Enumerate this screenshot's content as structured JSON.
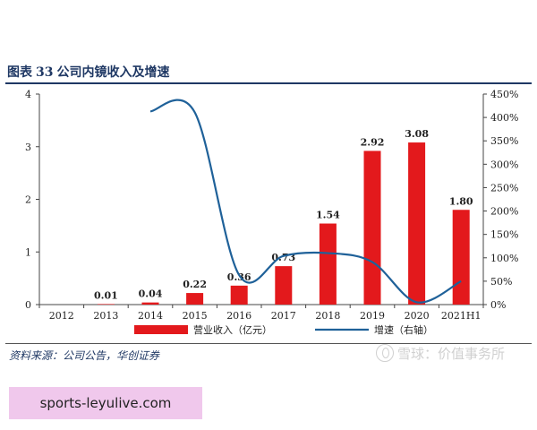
{
  "figure": {
    "label": "图表",
    "number": "33",
    "caption": "公司内镜收入及增速"
  },
  "source_text": "资料来源：公司公告，华创证券",
  "watermark_text": "雪球：价值事务所",
  "banner_text": "sports-leyulive.com",
  "chart_data": {
    "type": "bar",
    "title": "",
    "xlabel": "",
    "ylabel": "",
    "categories": [
      "2012",
      "2013",
      "2014",
      "2015",
      "2016",
      "2017",
      "2018",
      "2019",
      "2020",
      "2021H1"
    ],
    "series": [
      {
        "name": "营业收入（亿元）",
        "type": "bar",
        "axis": "left",
        "color": "#e3191c",
        "values": [
          0,
          0.01,
          0.04,
          0.22,
          0.36,
          0.73,
          1.54,
          2.92,
          3.08,
          1.8
        ],
        "data_labels": [
          "",
          "0.01",
          "0.04",
          "0.22",
          "0.36",
          "0.73",
          "1.54",
          "2.92",
          "3.08",
          "1.80"
        ]
      },
      {
        "name": "增速（右轴）",
        "type": "line",
        "axis": "right",
        "color": "#1f6199",
        "smooth": true,
        "values": [
          null,
          null,
          413,
          411,
          63,
          104,
          110,
          91,
          5,
          50
        ]
      }
    ],
    "ylim": [
      0,
      4
    ],
    "yticks": [
      "0",
      "1",
      "2",
      "3",
      "4"
    ],
    "y2lim": [
      0,
      450
    ],
    "y2ticks": [
      "0%",
      "50%",
      "100%",
      "150%",
      "200%",
      "250%",
      "300%",
      "350%",
      "400%",
      "450%"
    ],
    "grid": false,
    "legend": "bottom"
  }
}
